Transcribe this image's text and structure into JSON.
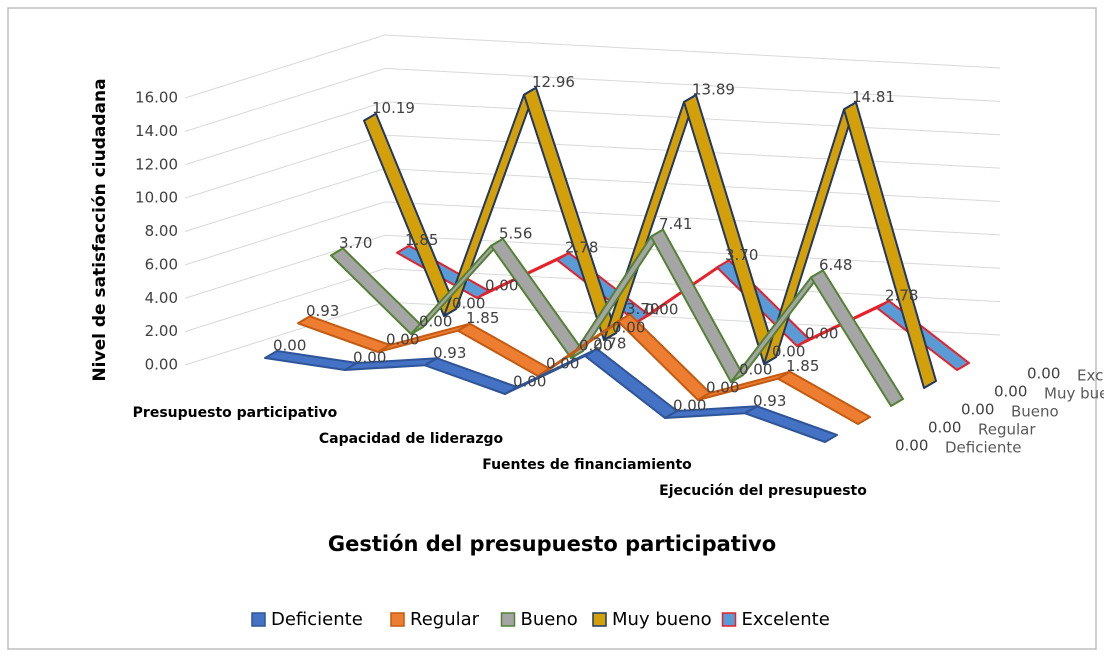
{
  "chart_data": {
    "type": "line3d",
    "x_title": "Gestión del presupuesto participativo",
    "y_title": "Nivel de satisfacción ciudadana",
    "categories": [
      "Presupuesto participativo",
      null,
      "Capacidad de liderazgo",
      null,
      "Fuentes de financiamiento",
      null,
      "Ejecución del presupuesto",
      null
    ],
    "ylim": [
      0,
      16
    ],
    "yticks": [
      {
        "value": 0,
        "label": "0.00"
      },
      {
        "value": 2,
        "label": "2.00"
      },
      {
        "value": 4,
        "label": "4.00"
      },
      {
        "value": 6,
        "label": "6.00"
      },
      {
        "value": 8,
        "label": "8.00"
      },
      {
        "value": 10,
        "label": "10.00"
      },
      {
        "value": 12,
        "label": "12.00"
      },
      {
        "value": 14,
        "label": "14.00"
      },
      {
        "value": 16,
        "label": "16.00"
      }
    ],
    "grid": true,
    "legend": "bottom",
    "series": [
      {
        "name": "Deficiente",
        "color": "#4472c4",
        "stroke": "#2f5597",
        "values": [
          0,
          0,
          0.93,
          0,
          2.78,
          0,
          0.93,
          0
        ],
        "value_labels": [
          "0.00",
          "0.00",
          "0.93",
          "0.00",
          "2.78",
          "0.00",
          "0.93",
          "0.00"
        ]
      },
      {
        "name": "Regular",
        "color": "#ed7d31",
        "stroke": "#c55a11",
        "values": [
          0.93,
          0,
          1.85,
          0,
          3.7,
          0,
          1.85,
          0
        ],
        "value_labels": [
          "0.93",
          "0.00",
          "1.85",
          "0.00",
          "3.70",
          "0.00",
          "1.85",
          "0.00"
        ]
      },
      {
        "name": "Bueno",
        "color": "#a5a5a5",
        "stroke": "#548235",
        "values": [
          3.7,
          0,
          5.56,
          0,
          7.41,
          0,
          6.48,
          0
        ],
        "value_labels": [
          "3.70",
          "0.00",
          "5.56",
          "0.00",
          "7.41",
          "0.00",
          "6.48",
          "0.00"
        ]
      },
      {
        "name": "Muy bueno",
        "color": "#d4a00a",
        "stroke": "#1f3864",
        "values": [
          10.19,
          0,
          12.96,
          0,
          13.89,
          0,
          14.81,
          0
        ],
        "value_labels": [
          "10.19",
          "0.00",
          "12.96",
          "0.00",
          "13.89",
          "0.00",
          "14.81",
          "0.00"
        ]
      },
      {
        "name": "Excelente",
        "color": "#5b9bd5",
        "stroke": "#e8202a",
        "values": [
          1.85,
          0,
          2.78,
          0,
          3.7,
          0,
          2.78,
          0
        ],
        "value_labels": [
          "1.85",
          "0.00",
          "2.78",
          "0.00",
          "3.70",
          "0.00",
          "2.78",
          "0.00"
        ]
      }
    ]
  }
}
